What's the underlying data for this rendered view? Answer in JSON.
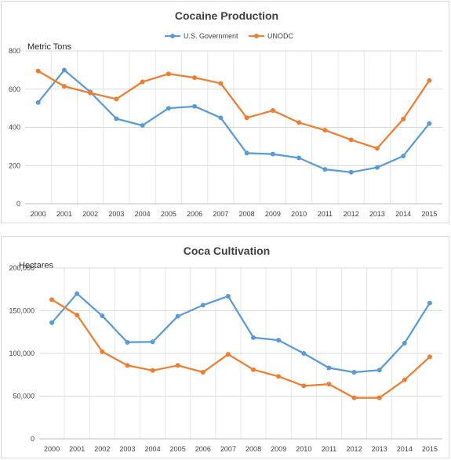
{
  "chart_data": [
    {
      "type": "line",
      "title": "Cocaine Production",
      "ylabel": "Metric Tons",
      "xlabel": "",
      "categories": [
        "2000",
        "2001",
        "2002",
        "2003",
        "2004",
        "2005",
        "2006",
        "2007",
        "2008",
        "2009",
        "2010",
        "2011",
        "2012",
        "2013",
        "2014",
        "2015"
      ],
      "ylim": [
        0,
        800
      ],
      "yticks": [
        0,
        200,
        400,
        600,
        800
      ],
      "ytick_labels": [
        "0",
        "200",
        "400",
        "600",
        "800"
      ],
      "grid": true,
      "legend": "top-center",
      "series": [
        {
          "name": "U.S. Government",
          "color": "#5b9bd5",
          "values": [
            530,
            700,
            585,
            445,
            410,
            500,
            510,
            450,
            265,
            260,
            240,
            180,
            165,
            190,
            250,
            420
          ]
        },
        {
          "name": "UNODC",
          "color": "#ed7d31",
          "values": [
            695,
            615,
            580,
            548,
            638,
            680,
            660,
            630,
            450,
            488,
            425,
            385,
            335,
            290,
            443,
            645
          ]
        }
      ]
    },
    {
      "type": "line",
      "title": "Coca Cultivation",
      "ylabel": "Hectares",
      "xlabel": "",
      "categories": [
        "2000",
        "2001",
        "2002",
        "2003",
        "2004",
        "2005",
        "2006",
        "2007",
        "2008",
        "2009",
        "2010",
        "2011",
        "2012",
        "2013",
        "2014",
        "2015"
      ],
      "ylim": [
        0,
        200000
      ],
      "yticks": [
        0,
        50000,
        100000,
        150000,
        200000
      ],
      "ytick_labels": [
        "0",
        "50,000",
        "100,000",
        "150,000",
        "200,000"
      ],
      "grid": true,
      "legend": "none",
      "series": [
        {
          "name": "U.S. Government",
          "color": "#5b9bd5",
          "values": [
            136000,
            170000,
            144000,
            113000,
            113500,
            143500,
            156500,
            167000,
            118500,
            115500,
            100000,
            83000,
            78000,
            80500,
            112000,
            159000
          ]
        },
        {
          "name": "UNODC",
          "color": "#ed7d31",
          "values": [
            163000,
            145000,
            102000,
            86000,
            80000,
            86000,
            78000,
            99000,
            81000,
            73000,
            62000,
            64000,
            48000,
            48000,
            69000,
            96000
          ]
        }
      ]
    }
  ]
}
